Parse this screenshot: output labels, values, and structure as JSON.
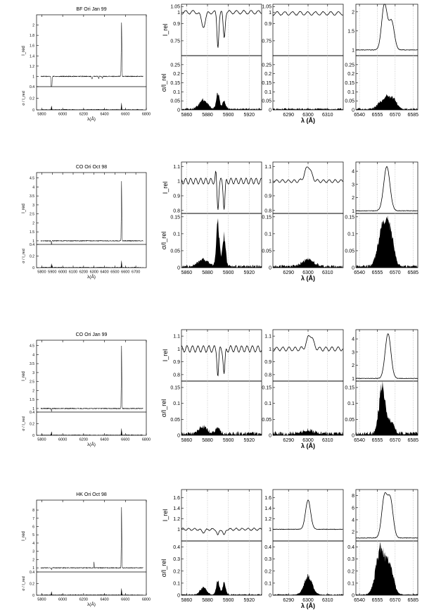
{
  "chart_data": [
    {
      "type": "line",
      "title": "BF Ori Jan 99",
      "overview": {
        "xticks": [
          5800,
          6000,
          6200,
          6400,
          6600,
          6800
        ],
        "xlim": [
          5750,
          6800
        ],
        "xlabel": "λ(Å)",
        "top": {
          "ylabel": "I_red",
          "ylim": [
            0.8,
            2.2
          ],
          "yticks": [
            1,
            1.2,
            1.4,
            1.6,
            1.8,
            2
          ],
          "ytick_labels": [
            "1",
            "1.2",
            "1.4",
            "1.6",
            "1.8",
            "2"
          ]
        },
        "bottom": {
          "ylabel": "σ / I_red",
          "ylim": [
            0,
            0.4
          ],
          "yticks": [
            0,
            0.2,
            0.4
          ],
          "ytick_labels": [
            "0",
            "0.2",
            "0.4"
          ]
        }
      },
      "zooms": {
        "ylabel_top": "I_rel",
        "ylabel_bottom": "σ/I_rel",
        "bottom_ylim": [
          0,
          0.3
        ],
        "bottom_yticks": [
          0,
          0.05,
          0.1,
          0.15,
          0.2,
          0.25
        ],
        "bottom_ytick_labels": [
          "0",
          "0.05",
          "0.1",
          "0.15",
          "0.2",
          "0.25"
        ],
        "top_ylims": [
          [
            0.62,
            1.07
          ],
          [
            0.62,
            1.07
          ],
          [
            0.85,
            2.2
          ]
        ],
        "top_yticks": [
          [
            0.75,
            0.9,
            1,
            1.05
          ],
          [
            0.75,
            0.9,
            1,
            1.05
          ],
          [
            1,
            1.5,
            2
          ]
        ],
        "top_ytick_labels": [
          [
            "0.75",
            "0.9",
            "1",
            "1.05"
          ],
          [
            "0.75",
            "0.9",
            "1",
            "1.05"
          ],
          [
            "1",
            "1.5",
            "2"
          ]
        ]
      }
    },
    {
      "type": "line",
      "title": "CO Ori Oct 98",
      "overview": {
        "xticks": [
          5800,
          5900,
          6000,
          6100,
          6200,
          6300,
          6400,
          6500,
          6600,
          6700
        ],
        "xlim": [
          5750,
          6800
        ],
        "xlabel": "λ(Å)",
        "top": {
          "ylabel": "I_red",
          "ylim": [
            0.8,
            4.8
          ],
          "yticks": [
            1,
            1.5,
            2,
            2.5,
            3,
            3.5,
            4,
            4.5
          ],
          "ytick_labels": [
            "1",
            "1.5",
            "2",
            "2.5",
            "3",
            "3.5",
            "4",
            "4.5"
          ]
        },
        "bottom": {
          "ylabel": "σ / I_red",
          "ylim": [
            0,
            0.4
          ],
          "yticks": [
            0,
            0.2,
            0.4
          ],
          "ytick_labels": [
            "0",
            "0.2",
            "0.4"
          ]
        }
      },
      "zooms": {
        "ylabel_top": "I_rel",
        "ylabel_bottom": "σ/I_rel",
        "bottom_ylim": [
          0,
          0.16
        ],
        "bottom_yticks": [
          0,
          0.05,
          0.1,
          0.15
        ],
        "bottom_ytick_labels": [
          "0",
          "0.05",
          "0.1",
          "0.15"
        ],
        "top_ylims": [
          [
            0.78,
            1.13
          ],
          [
            0.78,
            1.13
          ],
          [
            0.8,
            4.7
          ]
        ],
        "top_yticks": [
          [
            0.8,
            0.9,
            1,
            1.1
          ],
          [
            0.8,
            0.9,
            1,
            1.1
          ],
          [
            1,
            2,
            3,
            4
          ]
        ],
        "top_ytick_labels": [
          [
            "0.8",
            "0.9",
            "1",
            "1.1"
          ],
          [
            "0.8",
            "0.9",
            "1",
            "1.1"
          ],
          [
            "1",
            "2",
            "3",
            "4"
          ]
        ]
      }
    },
    {
      "type": "line",
      "title": "CO Ori Jan 99",
      "overview": {
        "xticks": [
          5800,
          6000,
          6200,
          6400,
          6600,
          6800
        ],
        "xlim": [
          5750,
          6800
        ],
        "xlabel": "λ(Å)",
        "top": {
          "ylabel": "I_red",
          "ylim": [
            0.8,
            4.8
          ],
          "yticks": [
            1,
            1.5,
            2,
            2.5,
            3,
            3.5,
            4,
            4.5
          ],
          "ytick_labels": [
            "1",
            "1.5",
            "2",
            "2.5",
            "3",
            "3.5",
            "4",
            "4.5"
          ]
        },
        "bottom": {
          "ylabel": "σ / I_red",
          "ylim": [
            0,
            0.4
          ],
          "yticks": [
            0,
            0.2,
            0.4
          ],
          "ytick_labels": [
            "0",
            "0.2",
            "0.4"
          ]
        }
      },
      "zooms": {
        "ylabel_top": "I_rel",
        "ylabel_bottom": "σ/I_rel",
        "bottom_ylim": [
          0,
          0.17
        ],
        "bottom_yticks": [
          0,
          0.05,
          0.1,
          0.15
        ],
        "bottom_ytick_labels": [
          "0",
          "0.05",
          "0.1",
          "0.15"
        ],
        "top_ylims": [
          [
            0.75,
            1.15
          ],
          [
            0.75,
            1.15
          ],
          [
            0.8,
            4.7
          ]
        ],
        "top_yticks": [
          [
            0.8,
            0.9,
            1,
            1.1
          ],
          [
            0.8,
            0.9,
            1,
            1.1
          ],
          [
            1,
            2,
            3,
            4
          ]
        ],
        "top_ytick_labels": [
          [
            "0.8",
            "0.9",
            "1",
            "1.1"
          ],
          [
            "0.8",
            "0.9",
            "1",
            "1.1"
          ],
          [
            "1",
            "2",
            "3",
            "4"
          ]
        ]
      }
    },
    {
      "type": "line",
      "title": "HK Ori Oct 98",
      "overview": {
        "xticks": [
          5800,
          6000,
          6200,
          6400,
          6600,
          6800
        ],
        "xlim": [
          5750,
          6800
        ],
        "xlabel": "λ(Å)",
        "top": {
          "ylabel": "I_red",
          "ylim": [
            0.5,
            9.2
          ],
          "yticks": [
            1,
            2,
            3,
            4,
            5,
            6,
            7,
            8
          ],
          "ytick_labels": [
            "1",
            "2",
            "3",
            "4",
            "5",
            "6",
            "7",
            "8"
          ]
        },
        "bottom": {
          "ylabel": "σ / I_red",
          "ylim": [
            0,
            0.4
          ],
          "yticks": [
            0,
            0.2,
            0.4
          ],
          "ytick_labels": [
            "0",
            "0.2",
            "0.4"
          ]
        }
      },
      "zooms": {
        "ylabel_top": "I_rel",
        "ylabel_bottom": "σ/I_rel",
        "bottom_ylim": [
          0,
          0.45
        ],
        "bottom_yticks": [
          0,
          0.1,
          0.2,
          0.3,
          0.4
        ],
        "bottom_ytick_labels": [
          "0",
          "0.1",
          "0.2",
          "0.3",
          "0.4"
        ],
        "top_ylims": [
          [
            0.78,
            1.75
          ],
          [
            0.78,
            1.75
          ],
          [
            0.5,
            9
          ]
        ],
        "top_yticks": [
          [
            1,
            1.2,
            1.4,
            1.6
          ],
          [
            1,
            1.2,
            1.4,
            1.6
          ],
          [
            2,
            4,
            6,
            8
          ]
        ],
        "top_ytick_labels": [
          [
            "1",
            "1.2",
            "1.4",
            "1.6"
          ],
          [
            "1",
            "1.2",
            "1.4",
            "1.6"
          ],
          [
            "2",
            "4",
            "6",
            "8"
          ]
        ]
      }
    }
  ],
  "zoom_columns": [
    {
      "xlim": [
        5855,
        5932
      ],
      "xticks": [
        5860,
        5880,
        5900,
        5920
      ],
      "xtick_labels": [
        "5860",
        "5880",
        "5900",
        "5920"
      ]
    },
    {
      "xlim": [
        6282,
        6318
      ],
      "xticks": [
        6290,
        6300,
        6310
      ],
      "xtick_labels": [
        "6290",
        "6300",
        "6310"
      ]
    },
    {
      "xlim": [
        6537,
        6589
      ],
      "xticks": [
        6540,
        6555,
        6570,
        6585
      ],
      "xtick_labels": [
        "6540",
        "6555",
        "6570",
        "6585"
      ]
    }
  ],
  "zoom_xlabel": "λ (Å)"
}
